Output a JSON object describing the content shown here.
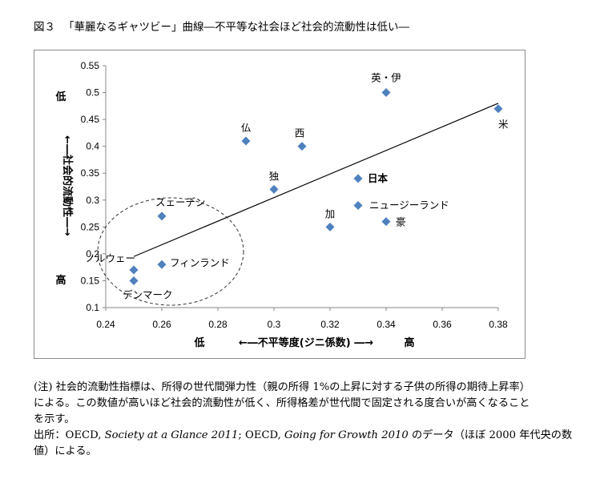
{
  "title": {
    "fig_no": "図３",
    "text": "「華麗なるギャツビー」曲線―不平等な社会ほど社会的流動性は低い―"
  },
  "chart_data": {
    "type": "scatter",
    "xlim": [
      0.24,
      0.38
    ],
    "ylim": [
      0.1,
      0.55
    ],
    "x_ticks": [
      "0.24",
      "0.26",
      "0.28",
      "0.3",
      "0.32",
      "0.34",
      "0.36",
      "0.38"
    ],
    "y_ticks": [
      "0.1",
      "0.15",
      "0.2",
      "0.25",
      "0.3",
      "0.35",
      "0.4",
      "0.45",
      "0.5",
      "0.55"
    ],
    "x_tick_values": [
      0.24,
      0.26,
      0.28,
      0.3,
      0.32,
      0.34,
      0.36,
      0.38
    ],
    "y_tick_values": [
      0.1,
      0.15,
      0.2,
      0.25,
      0.3,
      0.35,
      0.4,
      0.45,
      0.5,
      0.55
    ],
    "xlabel_low": "低",
    "xlabel": "←―不平等度(ジニ係数) ―→",
    "xlabel_high": "高",
    "ylabel_low": "高",
    "ylabel": "←―社会的流動性―→",
    "ylabel_high": "低",
    "marker_color": "#4f81bd",
    "points": [
      {
        "label": "英・伊",
        "x": 0.34,
        "y": 0.5
      },
      {
        "label": "米",
        "x": 0.38,
        "y": 0.47
      },
      {
        "label": "仏",
        "x": 0.29,
        "y": 0.41
      },
      {
        "label": "西",
        "x": 0.31,
        "y": 0.4
      },
      {
        "label": "日本",
        "x": 0.33,
        "y": 0.34
      },
      {
        "label": "独",
        "x": 0.3,
        "y": 0.32
      },
      {
        "label": "ニュージーランド",
        "x": 0.33,
        "y": 0.29
      },
      {
        "label": "スェーデン",
        "x": 0.26,
        "y": 0.27
      },
      {
        "label": "豪",
        "x": 0.34,
        "y": 0.26
      },
      {
        "label": "加",
        "x": 0.32,
        "y": 0.25
      },
      {
        "label": "フィンランド",
        "x": 0.26,
        "y": 0.18
      },
      {
        "label": "ノルウェー",
        "x": 0.25,
        "y": 0.17
      },
      {
        "label": "デンマーク",
        "x": 0.25,
        "y": 0.15
      }
    ],
    "trendline": {
      "x": [
        0.25,
        0.38
      ],
      "y": [
        0.195,
        0.48
      ]
    },
    "annotation": "dashed ellipse around Nordic countries"
  },
  "notes": {
    "note_line1": "(注) 社会的流動性指標は、所得の世代間弾力性（親の所得 1%の上昇に対する子供の所得の期待上昇率）",
    "note_line2": "による。この数値が高いほど社会的流動性が低く、所得格差が世代間で固定される度合いが高くなること",
    "note_line3": "を示す。",
    "source_prefix": "出所：OECD, ",
    "source_title1": "Society at a Glance 2011",
    "source_mid": "; OECD, ",
    "source_title2": "Going for Growth 2010",
    "source_suffix": " のデータ（ほぼ 2000 年代央の数",
    "source_line2": "値）による。"
  }
}
